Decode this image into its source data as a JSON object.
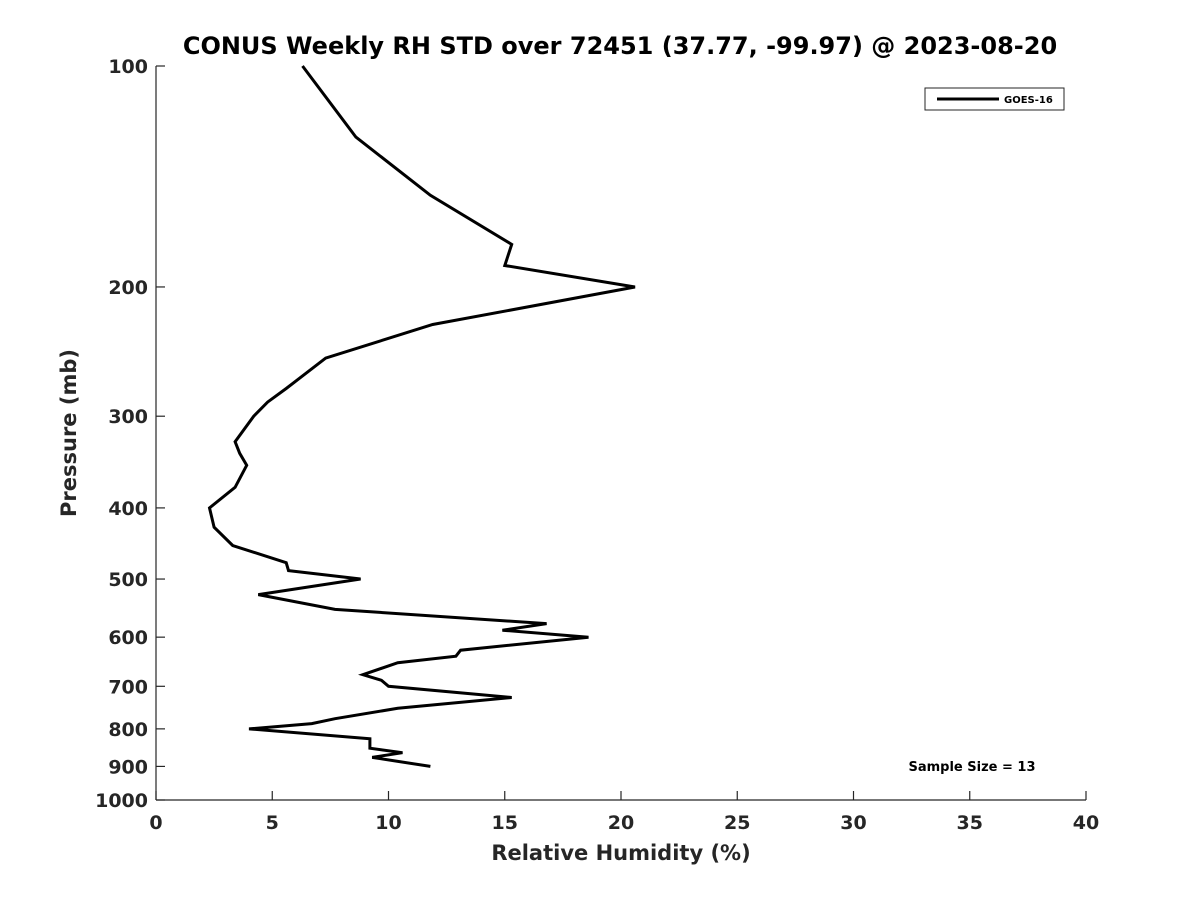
{
  "chart_data": {
    "type": "line",
    "title": "CONUS Weekly RH STD over 72451 (37.77, -99.97) @ 2023-08-20",
    "xlabel": "Relative Humidity (%)",
    "ylabel": "Pressure (mb)",
    "xlim": [
      0,
      40
    ],
    "ylim": [
      100,
      1000
    ],
    "yscale": "log",
    "reversed_y": true,
    "x_ticks": [
      0,
      5,
      10,
      15,
      20,
      25,
      30,
      35,
      40
    ],
    "y_ticks": [
      100,
      200,
      300,
      400,
      500,
      600,
      700,
      800,
      900,
      1000
    ],
    "grid": false,
    "legend_position": "top-right",
    "series": [
      {
        "name": "GOES-16",
        "color": "#000000",
        "points": [
          [
            6.3,
            100
          ],
          [
            8.6,
            125
          ],
          [
            11.8,
            150
          ],
          [
            15.3,
            175
          ],
          [
            15.0,
            187
          ],
          [
            20.6,
            200
          ],
          [
            11.9,
            225
          ],
          [
            7.3,
            250
          ],
          [
            5.6,
            275
          ],
          [
            4.8,
            287
          ],
          [
            4.2,
            300
          ],
          [
            3.4,
            325
          ],
          [
            3.6,
            337
          ],
          [
            3.9,
            350
          ],
          [
            3.4,
            375
          ],
          [
            2.3,
            400
          ],
          [
            2.5,
            425
          ],
          [
            3.3,
            450
          ],
          [
            5.6,
            475
          ],
          [
            5.7,
            487
          ],
          [
            8.8,
            500
          ],
          [
            4.4,
            525
          ],
          [
            7.7,
            550
          ],
          [
            16.8,
            575
          ],
          [
            14.9,
            587
          ],
          [
            18.6,
            600
          ],
          [
            13.1,
            625
          ],
          [
            12.9,
            637
          ],
          [
            10.4,
            650
          ],
          [
            8.9,
            675
          ],
          [
            9.7,
            687
          ],
          [
            10.0,
            700
          ],
          [
            15.3,
            725
          ],
          [
            10.4,
            750
          ],
          [
            7.7,
            775
          ],
          [
            6.7,
            787
          ],
          [
            4.0,
            800
          ],
          [
            9.2,
            825
          ],
          [
            9.2,
            850
          ],
          [
            10.6,
            862
          ],
          [
            9.3,
            875
          ],
          [
            11.8,
            900
          ]
        ]
      }
    ],
    "annotation": "Sample Size = 13"
  }
}
